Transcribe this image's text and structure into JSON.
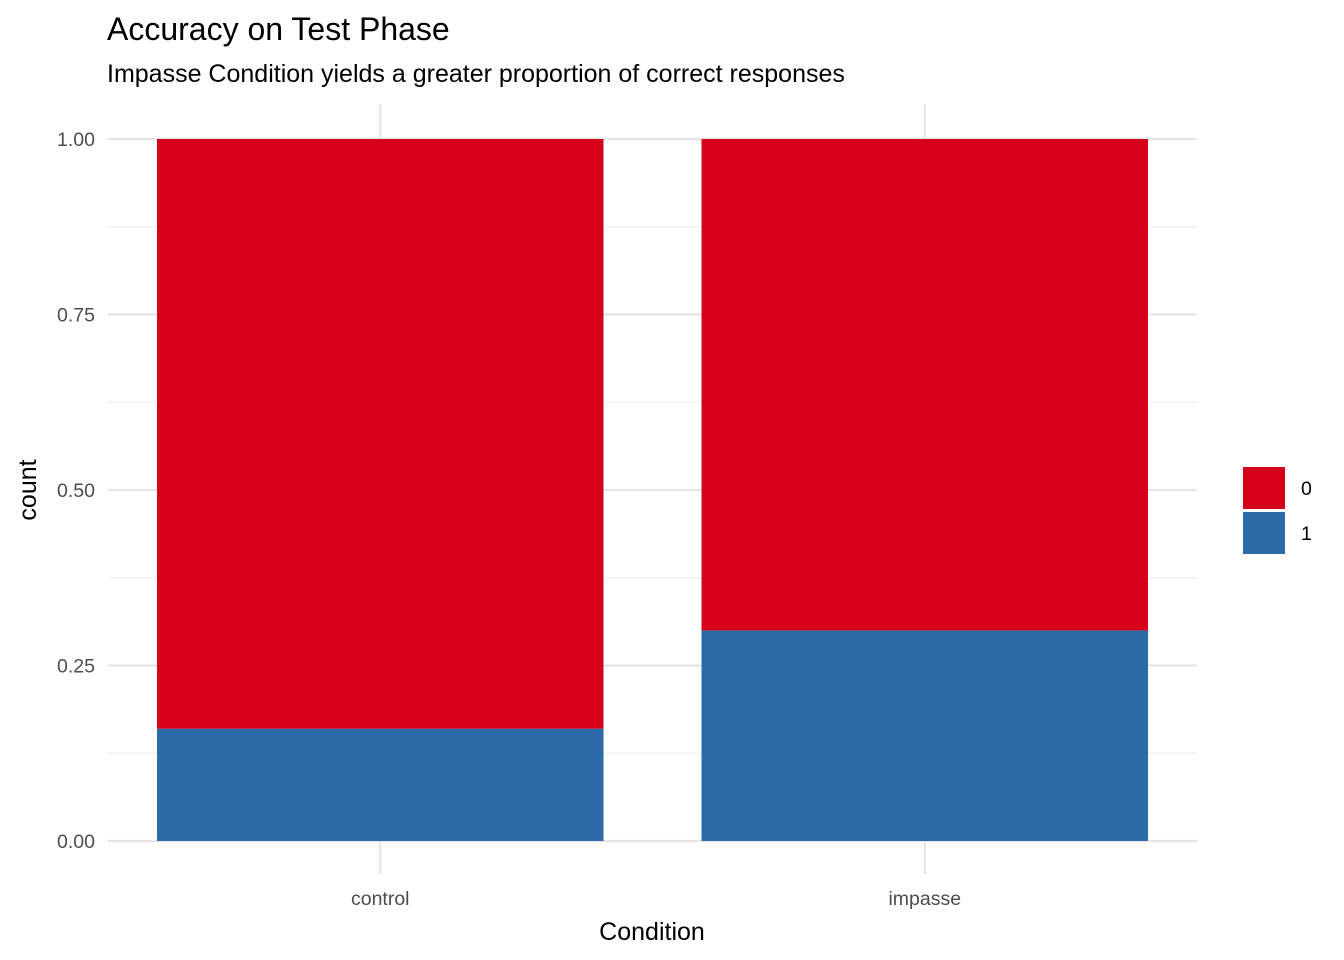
{
  "chart_data": {
    "type": "bar",
    "stacked": true,
    "title": "Accuracy on Test Phase",
    "subtitle": "Impasse Condition yields a greater proportion of correct responses",
    "xlabel": "Condition",
    "ylabel": "count",
    "categories": [
      "control",
      "impasse"
    ],
    "series": [
      {
        "name": "0",
        "values": [
          0.84,
          0.7
        ],
        "color": "#d7001a"
      },
      {
        "name": "1",
        "values": [
          0.16,
          0.3
        ],
        "color": "#2d6aa8"
      }
    ],
    "ylim": [
      0,
      1
    ],
    "yticks": [
      0.0,
      0.25,
      0.5,
      0.75,
      1.0
    ],
    "ytick_labels": [
      "0.00",
      "0.25",
      "0.50",
      "0.75",
      "1.00"
    ],
    "grid": true,
    "legend_position": "right",
    "legend_title": ""
  }
}
